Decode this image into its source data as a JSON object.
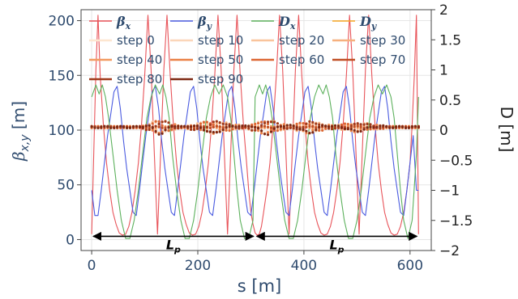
{
  "chart_data": {
    "type": "line",
    "xlabel": "s [m]",
    "ylabel_left": "β_{x,y} [m]",
    "ylabel_right": "D [m]",
    "xlim": [
      -20,
      640
    ],
    "ylim_left": [
      -10,
      210
    ],
    "ylim_right": [
      -2,
      2
    ],
    "x_ticks": [
      0,
      200,
      400,
      600
    ],
    "y_ticks_left": [
      0,
      50,
      100,
      150,
      200
    ],
    "y_ticks_right": [
      "2",
      "1.5",
      "1",
      "0.5",
      "0",
      "−0.5",
      "−1",
      "−1.5",
      "−2"
    ],
    "y_tick_values_right": [
      2,
      1.5,
      1,
      0.5,
      0,
      -0.5,
      -1,
      -1.5,
      -2
    ],
    "grid": true,
    "legend_position": "top-left",
    "colors": {
      "beta_x": "#e8545a",
      "beta_y": "#4a5be0",
      "D_x": "#5db15d",
      "D_y": "#f5a623",
      "arrow": "#000000",
      "axis_text": "#2f4b6e"
    },
    "legend": [
      {
        "label": "β",
        "sub": "x",
        "color": "#e8545a"
      },
      {
        "label": "β",
        "sub": "y",
        "color": "#4a5be0"
      },
      {
        "label": "D",
        "sub": "x",
        "color": "#5db15d"
      },
      {
        "label": "D",
        "sub": "y",
        "color": "#f5a623"
      },
      {
        "label": "step 0",
        "color": "#fde6d0"
      },
      {
        "label": "step 10",
        "color": "#fbd6b9"
      },
      {
        "label": "step 20",
        "color": "#f9c49c"
      },
      {
        "label": "step 30",
        "color": "#f6b07e"
      },
      {
        "label": "step 40",
        "color": "#f29a60"
      },
      {
        "label": "step 50",
        "color": "#ea8046"
      },
      {
        "label": "step 60",
        "color": "#dc6632"
      },
      {
        "label": "step 70",
        "color": "#c04e24"
      },
      {
        "label": "step 80",
        "color": "#a0391a"
      },
      {
        "label": "step 90",
        "color": "#7d2812"
      }
    ],
    "annotations": [
      {
        "text": "L",
        "sub": "p",
        "x_start": 0,
        "x_end": 308
      },
      {
        "text": "L",
        "sub": "p",
        "x_start": 308,
        "x_end": 616
      }
    ],
    "series": [
      {
        "name": "β_x",
        "axis": "left",
        "x": [
          0,
          4,
          8,
          12,
          16,
          22,
          28,
          34,
          40,
          46,
          52,
          58,
          64,
          70,
          76,
          82,
          88,
          94,
          100,
          106,
          112,
          118,
          124,
          130,
          136,
          142,
          148,
          154,
          160,
          166,
          172,
          178,
          184,
          190,
          196,
          202,
          208,
          214,
          220,
          226,
          232,
          238,
          244,
          250,
          256,
          262,
          268,
          274,
          280,
          286,
          292,
          296,
          300,
          304,
          308,
          312,
          316,
          320,
          324,
          330,
          336,
          342,
          348,
          354,
          360,
          366,
          372,
          378,
          384,
          390,
          396,
          402,
          408,
          414,
          420,
          426,
          432,
          438,
          444,
          450,
          456,
          462,
          468,
          474,
          480,
          486,
          492,
          498,
          504,
          510,
          516,
          522,
          528,
          534,
          540,
          546,
          552,
          558,
          564,
          570,
          576,
          582,
          588,
          594,
          600,
          604,
          608,
          612,
          616
        ],
        "values": [
          5,
          80,
          155,
          205,
          150,
          105,
          70,
          45,
          25,
          14,
          6,
          4,
          5,
          12,
          25,
          45,
          70,
          105,
          150,
          205,
          155,
          80,
          5,
          80,
          155,
          205,
          150,
          105,
          70,
          45,
          25,
          14,
          6,
          4,
          5,
          12,
          25,
          45,
          70,
          105,
          150,
          205,
          155,
          80,
          5,
          80,
          155,
          205,
          150,
          105,
          70,
          45,
          25,
          14,
          6,
          4,
          5,
          12,
          25,
          45,
          70,
          105,
          150,
          205,
          155,
          80,
          5,
          80,
          155,
          205,
          150,
          105,
          70,
          45,
          25,
          14,
          6,
          4,
          5,
          12,
          25,
          45,
          70,
          105,
          150,
          205,
          155,
          80,
          5,
          80,
          155,
          205,
          150,
          105,
          70,
          45,
          25,
          14,
          6,
          4,
          5,
          12,
          25,
          45,
          70,
          105,
          150,
          205,
          5
        ]
      },
      {
        "name": "β_y",
        "axis": "left",
        "x": [
          0,
          6,
          12,
          18,
          24,
          30,
          36,
          42,
          48,
          54,
          60,
          66,
          72,
          78,
          84,
          90,
          96,
          102,
          108,
          114,
          120,
          126,
          132,
          138,
          144,
          150,
          156,
          162,
          168,
          174,
          180,
          186,
          192,
          198,
          204,
          210,
          216,
          222,
          228,
          234,
          240,
          246,
          252,
          258,
          264,
          270,
          276,
          282,
          288,
          294,
          300,
          306,
          312,
          318,
          324,
          330,
          336,
          342,
          348,
          354,
          360,
          366,
          372,
          378,
          384,
          390,
          396,
          402,
          408,
          414,
          420,
          426,
          432,
          438,
          444,
          450,
          456,
          462,
          468,
          474,
          480,
          486,
          492,
          498,
          504,
          510,
          516,
          522,
          528,
          534,
          540,
          546,
          552,
          558,
          564,
          570,
          576,
          582,
          588,
          594,
          600,
          606,
          612,
          616
        ],
        "values": [
          45,
          22,
          22,
          45,
          70,
          95,
          115,
          135,
          140,
          120,
          90,
          65,
          45,
          25,
          22,
          45,
          70,
          95,
          115,
          135,
          140,
          120,
          90,
          65,
          45,
          25,
          22,
          45,
          70,
          95,
          115,
          135,
          140,
          120,
          90,
          65,
          45,
          25,
          22,
          45,
          70,
          95,
          115,
          135,
          140,
          120,
          90,
          65,
          45,
          25,
          22,
          45,
          70,
          95,
          115,
          135,
          140,
          120,
          90,
          65,
          45,
          25,
          22,
          45,
          70,
          95,
          115,
          135,
          140,
          120,
          90,
          65,
          45,
          25,
          22,
          45,
          70,
          95,
          115,
          135,
          140,
          120,
          90,
          65,
          45,
          25,
          22,
          45,
          70,
          95,
          115,
          135,
          140,
          120,
          90,
          65,
          45,
          25,
          22,
          45,
          70,
          95,
          45,
          45
        ]
      },
      {
        "name": "D_x",
        "axis": "right",
        "x": [
          0,
          8,
          14,
          20,
          26,
          32,
          40,
          48,
          56,
          64,
          72,
          80,
          88,
          96,
          104,
          112,
          120,
          128,
          134,
          140,
          146,
          152,
          160,
          168,
          176,
          184,
          192,
          200,
          208,
          216,
          224,
          232,
          240,
          248,
          256,
          262,
          268,
          274,
          280,
          288,
          296,
          304,
          308,
          316,
          322,
          328,
          334,
          340,
          348,
          356,
          364,
          372,
          380,
          388,
          396,
          404,
          412,
          420,
          428,
          436,
          442,
          448,
          454,
          460,
          468,
          476,
          484,
          492,
          500,
          508,
          516,
          524,
          532,
          540,
          548,
          556,
          564,
          570,
          576,
          582,
          588,
          596,
          604,
          612,
          616
        ],
        "values": [
          0.55,
          0.75,
          0.6,
          0.75,
          0.55,
          0.2,
          -0.4,
          -1.0,
          -1.5,
          -1.8,
          -1.8,
          -1.5,
          -1.0,
          -0.4,
          0.2,
          0.55,
          0.75,
          0.6,
          0.75,
          0.55,
          0.2,
          -0.4,
          -1.0,
          -1.5,
          -1.8,
          -1.8,
          -1.5,
          -1.0,
          -0.4,
          0.2,
          0.55,
          0.75,
          0.6,
          0.75,
          0.55,
          0.2,
          -0.4,
          -1.0,
          -1.5,
          -1.8,
          -1.8,
          -1.5,
          0.55,
          0.75,
          0.6,
          0.75,
          0.55,
          0.2,
          -0.4,
          -1.0,
          -1.5,
          -1.8,
          -1.8,
          -1.5,
          -1.0,
          -0.4,
          0.2,
          0.55,
          0.75,
          0.6,
          0.75,
          0.55,
          0.2,
          -0.4,
          -1.0,
          -1.5,
          -1.8,
          -1.8,
          -1.5,
          -1.0,
          -0.4,
          0.2,
          0.55,
          0.75,
          0.6,
          0.75,
          0.55,
          0.2,
          -0.4,
          -1.0,
          -1.5,
          -1.8,
          -1.5,
          -0.4,
          0.55
        ]
      }
    ],
    "scatter_steps": {
      "axis": "right",
      "x_start": 0,
      "x_end": 616,
      "count_per_step": 103,
      "baseline": 0.05,
      "bumps": [
        {
          "center": 130,
          "width": 25,
          "amplitude": 0.12
        },
        {
          "center": 230,
          "width": 40,
          "amplitude": 0.1
        },
        {
          "center": 330,
          "width": 30,
          "amplitude": 0.12
        },
        {
          "center": 410,
          "width": 30,
          "amplitude": 0.1
        },
        {
          "center": 500,
          "width": 40,
          "amplitude": 0.07
        }
      ]
    }
  }
}
